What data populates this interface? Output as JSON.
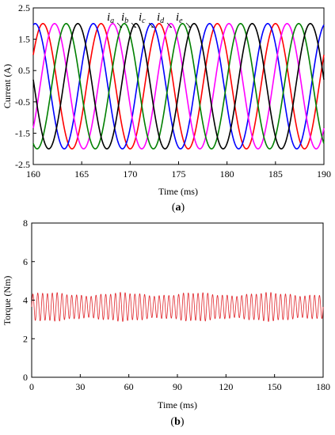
{
  "colors": {
    "ia": "#ff0000",
    "ib": "#0000ff",
    "ic": "#ff00ff",
    "id": "#008000",
    "ie": "#000000",
    "torque": "#e0242a"
  },
  "chart_data": [
    {
      "type": "line",
      "panel_label": "(a)",
      "panel_letter": "a",
      "xlabel": "Time (ms)",
      "ylabel": "Current (A)",
      "xlim": [
        160,
        190
      ],
      "ylim": [
        -2.5,
        2.5
      ],
      "x_ticks": [
        160,
        165,
        170,
        175,
        180,
        185,
        190
      ],
      "y_ticks": [
        -2.5,
        -1.5,
        -0.5,
        0.5,
        1.5,
        2.5
      ],
      "grid": false,
      "legend": "inline labels near top",
      "waveform": {
        "amplitude": 2.0,
        "period_ms": 6.0
      },
      "series": [
        {
          "label_main": "i",
          "label_sub": "a",
          "peak_times_ms": [
            161.0,
            167.0,
            173.0,
            179.0,
            185.0
          ]
        },
        {
          "label_main": "i",
          "label_sub": "b",
          "peak_times_ms": [
            160.2,
            166.2,
            172.2,
            178.2,
            184.2
          ]
        },
        {
          "label_main": "i",
          "label_sub": "c",
          "peak_times_ms": [
            162.2,
            168.2,
            174.2,
            180.2,
            186.2
          ]
        },
        {
          "label_main": "i",
          "label_sub": "d",
          "peak_times_ms": [
            163.4,
            169.4,
            175.4,
            181.4,
            187.4
          ]
        },
        {
          "label_main": "i",
          "label_sub": "e",
          "peak_times_ms": [
            164.6,
            170.6,
            176.6,
            182.6,
            188.6
          ]
        }
      ]
    },
    {
      "type": "line",
      "panel_label": "(b)",
      "panel_letter": "b",
      "xlabel": "Time (ms)",
      "ylabel": "Torque (Nm)",
      "xlim": [
        0,
        180
      ],
      "ylim": [
        0,
        8
      ],
      "x_ticks": [
        0,
        30,
        60,
        90,
        120,
        150,
        180
      ],
      "y_ticks": [
        0,
        2,
        4,
        6,
        8
      ],
      "grid": false,
      "waveform": {
        "mean": 3.65,
        "ripple_peak": 4.3,
        "ripple_trough": 3.0,
        "ripple_period_ms": 3.0
      }
    }
  ]
}
